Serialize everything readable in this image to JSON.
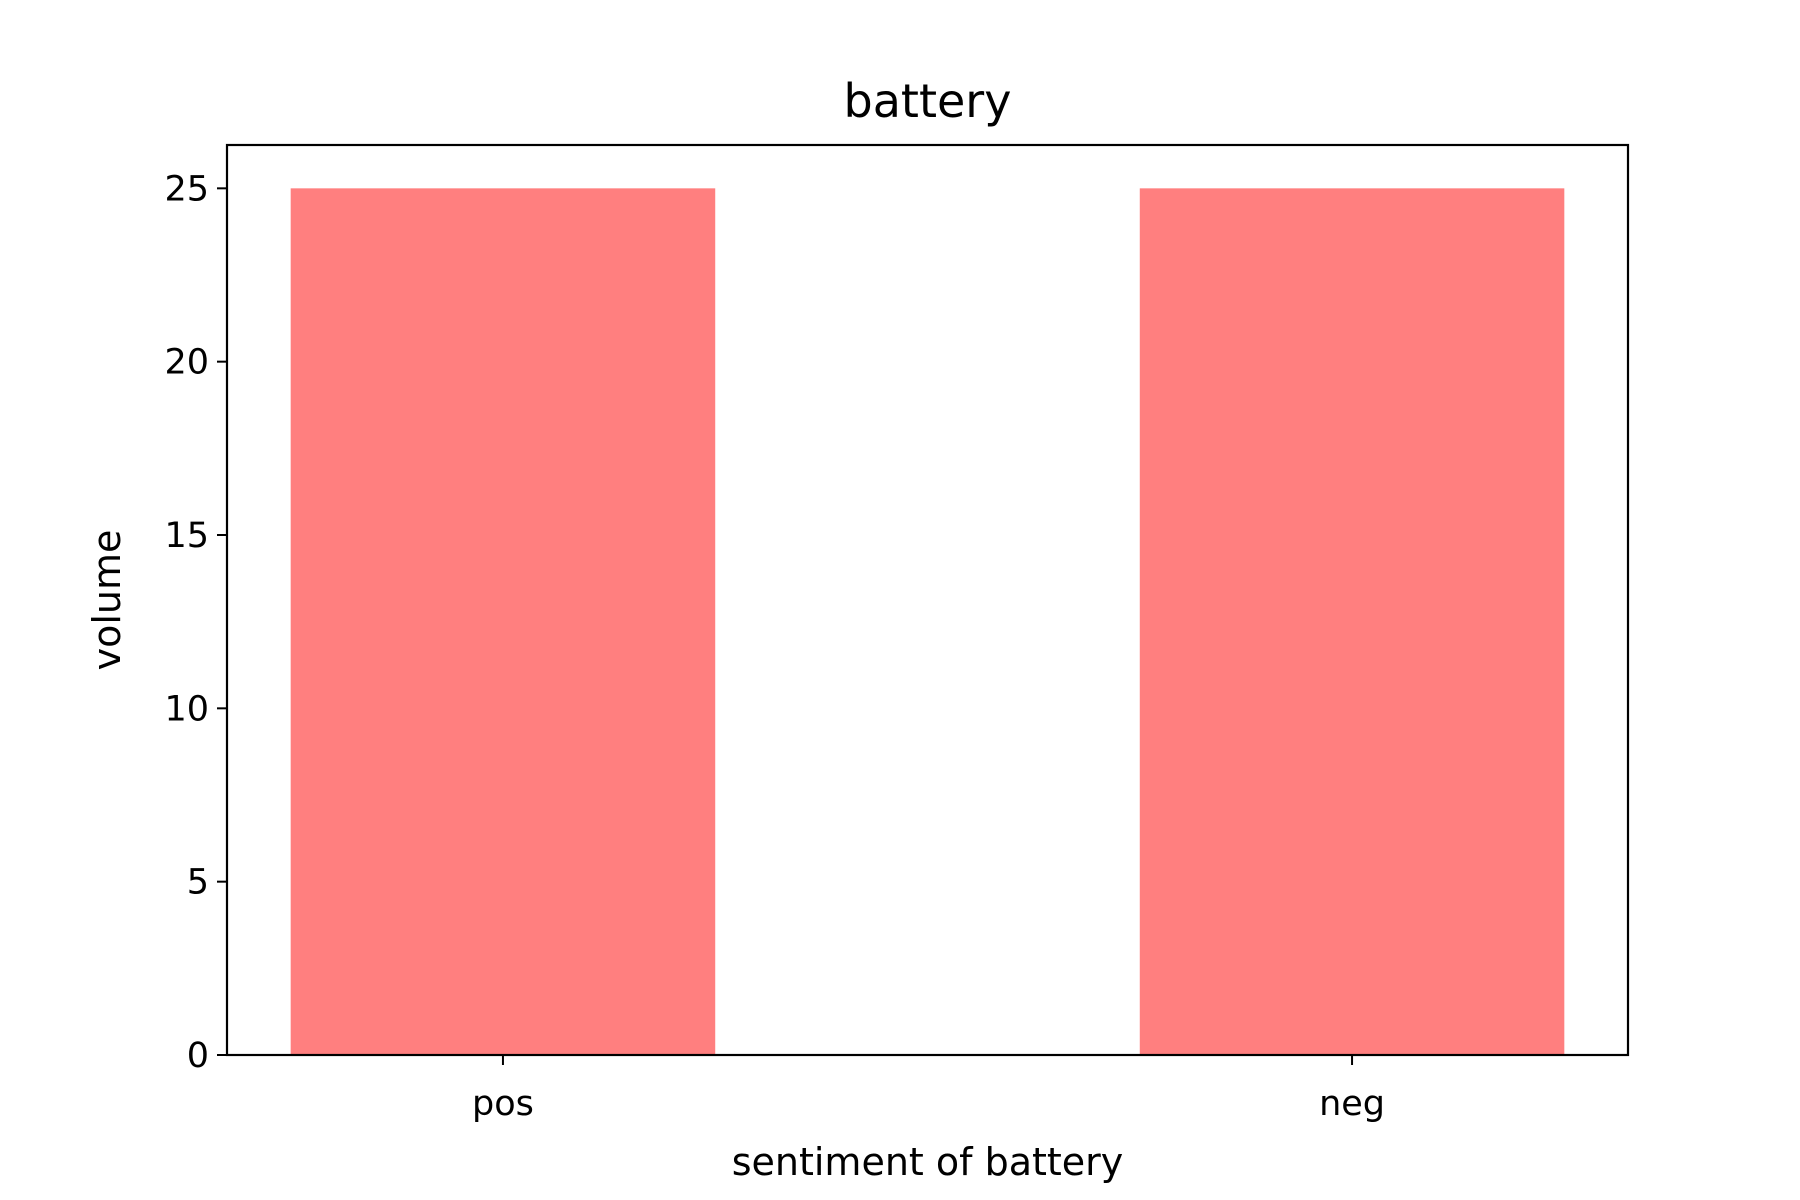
{
  "chart_data": {
    "type": "bar",
    "title": "battery",
    "xlabel": "sentiment of battery",
    "ylabel": "volume",
    "categories": [
      "pos",
      "neg"
    ],
    "values": [
      25,
      25
    ],
    "ylim": [
      0,
      26.25
    ],
    "yticks": [
      0,
      5,
      10,
      15,
      20,
      25
    ],
    "bar_color": "#ff7f7f",
    "grid": false,
    "legend": "none"
  }
}
